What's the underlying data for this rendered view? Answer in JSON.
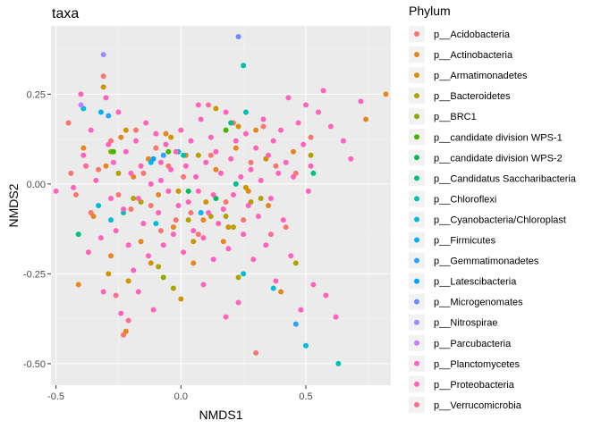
{
  "chart_data": {
    "type": "scatter",
    "title": "taxa",
    "xlabel": "NMDS1",
    "ylabel": "NMDS2",
    "xlim": [
      -0.52,
      0.84
    ],
    "ylim": [
      -0.56,
      0.44
    ],
    "x_ticks": [
      -0.5,
      0.0,
      0.5
    ],
    "x_tick_labels": [
      "-0.5",
      "0.0",
      "0.5"
    ],
    "y_ticks": [
      -0.5,
      -0.25,
      0.0,
      0.25
    ],
    "y_tick_labels": [
      "-0.50",
      "-0.25",
      "0.00",
      "0.25"
    ],
    "grid": true,
    "legend": {
      "title": "Phylum",
      "position": "right",
      "entries": [
        {
          "label": "p__Acidobacteria",
          "color": "#F8766D"
        },
        {
          "label": "p__Actinobacteria",
          "color": "#E7851E"
        },
        {
          "label": "p__Armatimonadetes",
          "color": "#D09400"
        },
        {
          "label": "p__Bacteroidetes",
          "color": "#B2A100"
        },
        {
          "label": "p__BRC1",
          "color": "#89AC00"
        },
        {
          "label": "p__candidate division WPS-1",
          "color": "#45B500"
        },
        {
          "label": "p__candidate division WPS-2",
          "color": "#00BC51"
        },
        {
          "label": "p__Candidatus Saccharibacteria",
          "color": "#00C087"
        },
        {
          "label": "p__Chloroflexi",
          "color": "#00C0B2"
        },
        {
          "label": "p__Cyanobacteria/Chloroplast",
          "color": "#00BCD6"
        },
        {
          "label": "p__Firmicutes",
          "color": "#00B3F2"
        },
        {
          "label": "p__Gemmatimonadetes",
          "color": "#29A3FF"
        },
        {
          "label": "p__Latescibacteria",
          "color": "#00A5FF"
        },
        {
          "label": "p__Microgenomates",
          "color": "#6B8BFF"
        },
        {
          "label": "p__Nitrospirae",
          "color": "#9C8DFF"
        },
        {
          "label": "p__Parcubacteria",
          "color": "#C77CFF"
        },
        {
          "label": "p__Planctomycetes",
          "color": "#FF61C9"
        },
        {
          "label": "p__Proteobacteria",
          "color": "#FF62BC"
        },
        {
          "label": "p__Verrucomicrobia",
          "color": "#FF6C91"
        }
      ]
    },
    "series": [
      {
        "name": "p__Acidobacteria",
        "points": [
          [
            -0.45,
            0.17
          ],
          [
            -0.44,
            0.03
          ],
          [
            -0.42,
            -0.03
          ],
          [
            -0.38,
            0.05
          ],
          [
            -0.36,
            -0.08
          ],
          [
            -0.33,
            0.04
          ],
          [
            -0.31,
            0.3
          ],
          [
            -0.28,
            0.12
          ],
          [
            -0.25,
            -0.03
          ],
          [
            -0.23,
            -0.42
          ],
          [
            -0.2,
            -0.07
          ],
          [
            -0.18,
            0.15
          ],
          [
            -0.15,
            0.03
          ],
          [
            -0.12,
            -0.06
          ],
          [
            -0.1,
            0.1
          ],
          [
            -0.08,
            -0.13
          ],
          [
            -0.05,
            0.05
          ],
          [
            -0.02,
            -0.1
          ],
          [
            0.01,
            0.02
          ],
          [
            0.04,
            -0.08
          ],
          [
            0.07,
            -0.14
          ],
          [
            0.12,
            0.08
          ],
          [
            0.18,
            -0.05
          ],
          [
            0.21,
            0.17
          ],
          [
            0.25,
            -0.1
          ],
          [
            0.28,
            0.06
          ],
          [
            0.3,
            -0.47
          ],
          [
            0.33,
            0.16
          ],
          [
            0.38,
            0.05
          ],
          [
            0.42,
            -0.12
          ],
          [
            0.46,
            0.03
          ],
          [
            0.52,
            0.13
          ]
        ]
      },
      {
        "name": "p__Actinobacteria",
        "points": [
          [
            -0.41,
            -0.28
          ],
          [
            -0.39,
            0.1
          ],
          [
            -0.35,
            -0.09
          ],
          [
            -0.3,
            0.05
          ],
          [
            -0.28,
            -0.2
          ],
          [
            -0.24,
            0.13
          ],
          [
            -0.22,
            -0.41
          ],
          [
            -0.19,
            0.02
          ],
          [
            -0.16,
            -0.16
          ],
          [
            -0.13,
            0.07
          ],
          [
            -0.09,
            -0.03
          ],
          [
            -0.06,
            0.14
          ],
          [
            -0.03,
            -0.12
          ],
          [
            0.02,
            0.08
          ],
          [
            0.05,
            -0.22
          ],
          [
            0.09,
            -0.1
          ],
          [
            0.14,
            0.04
          ],
          [
            0.17,
            -0.16
          ],
          [
            0.22,
            0.1
          ],
          [
            0.27,
            -0.02
          ],
          [
            0.3,
            0.15
          ],
          [
            0.35,
            -0.06
          ],
          [
            0.4,
            -0.3
          ],
          [
            0.45,
            0.09
          ],
          [
            0.74,
            0.18
          ],
          [
            0.82,
            0.25
          ]
        ]
      },
      {
        "name": "p__Armatimonadetes",
        "points": [
          [
            -0.31,
            0.27
          ],
          [
            -0.29,
            -0.25
          ],
          [
            -0.22,
            0.15
          ],
          [
            -0.21,
            -0.27
          ],
          [
            -0.12,
            -0.22
          ],
          [
            -0.04,
            0.13
          ],
          [
            -0.01,
            -0.02
          ],
          [
            0.0,
            -0.32
          ],
          [
            0.05,
            -0.16
          ],
          [
            0.1,
            -0.05
          ],
          [
            0.14,
            0.21
          ],
          [
            0.19,
            -0.12
          ],
          [
            0.23,
            0.16
          ],
          [
            0.26,
            -0.01
          ],
          [
            0.34,
            0.07
          ]
        ]
      },
      {
        "name": "p__Bacteroidetes",
        "points": [
          [
            -0.25,
            0.03
          ],
          [
            -0.19,
            -0.04
          ],
          [
            -0.16,
            -0.05
          ],
          [
            -0.09,
            -0.23
          ],
          [
            -0.03,
            -0.29
          ],
          [
            0.03,
            -0.1
          ],
          [
            0.07,
            0.08
          ],
          [
            0.12,
            -0.09
          ],
          [
            0.18,
            -0.09
          ],
          [
            0.21,
            -0.12
          ],
          [
            0.23,
            -0.26
          ],
          [
            0.28,
            -0.05
          ],
          [
            0.32,
            -0.04
          ],
          [
            0.46,
            -0.22
          ],
          [
            0.52,
            0.08
          ]
        ]
      },
      {
        "name": "p__BRC1",
        "points": [
          [
            -0.28,
            0.09
          ],
          [
            -0.07,
            -0.26
          ]
        ]
      },
      {
        "name": "p__candidate division WPS-1",
        "points": [
          [
            -0.27,
            0.09
          ],
          [
            -0.05,
            0.09
          ],
          [
            0.18,
            0.15
          ]
        ]
      },
      {
        "name": "p__candidate division WPS-2",
        "points": [
          [
            0.03,
            -0.02
          ],
          [
            0.14,
            -0.04
          ]
        ]
      },
      {
        "name": "p__Candidatus Saccharibacteria",
        "points": [
          [
            -0.41,
            -0.14
          ],
          [
            0.2,
            0.17
          ],
          [
            0.22,
            0.0
          ],
          [
            0.53,
            0.03
          ]
        ]
      },
      {
        "name": "p__Chloroflexi",
        "points": [
          [
            -0.23,
            -0.08
          ],
          [
            0.25,
            0.33
          ],
          [
            0.26,
            0.2
          ],
          [
            0.63,
            -0.5
          ],
          [
            0.01,
            0.08
          ]
        ]
      },
      {
        "name": "p__Cyanobacteria/Chloroplast",
        "points": [
          [
            -0.39,
            0.21
          ],
          [
            -0.33,
            -0.06
          ],
          [
            -0.28,
            -0.1
          ],
          [
            -0.1,
            -0.11
          ],
          [
            -0.01,
            0.09
          ],
          [
            0.25,
            -0.25
          ],
          [
            0.37,
            -0.29
          ],
          [
            0.5,
            -0.45
          ]
        ]
      },
      {
        "name": "p__Firmicutes",
        "points": [
          [
            -0.32,
            0.2
          ],
          [
            -0.12,
            0.06
          ],
          [
            0.08,
            -0.08
          ]
        ]
      },
      {
        "name": "p__Gemmatimonadetes",
        "points": [
          [
            -0.29,
            0.19
          ],
          [
            -0.07,
            0.08
          ],
          [
            0.46,
            -0.39
          ]
        ]
      },
      {
        "name": "p__Latescibacteria",
        "points": [
          [
            -0.11,
            0.07
          ]
        ]
      },
      {
        "name": "p__Microgenomates",
        "points": [
          [
            0.23,
            0.41
          ]
        ]
      },
      {
        "name": "p__Nitrospirae",
        "points": [
          [
            -0.31,
            0.36
          ]
        ]
      },
      {
        "name": "p__Parcubacteria",
        "points": [
          [
            -0.4,
            0.22
          ]
        ]
      },
      {
        "name": "p__Planctomycetes",
        "points": [
          [
            -0.08,
            0.01
          ],
          [
            0.13,
            -0.21
          ]
        ]
      },
      {
        "name": "p__Proteobacteria",
        "points": [
          [
            -0.5,
            -0.02
          ],
          [
            -0.43,
            -0.01
          ],
          [
            -0.4,
            0.25
          ],
          [
            -0.39,
            0.08
          ],
          [
            -0.37,
            -0.19
          ],
          [
            -0.36,
            0.15
          ],
          [
            -0.34,
            0.01
          ],
          [
            -0.32,
            -0.15
          ],
          [
            -0.31,
            -0.3
          ],
          [
            -0.3,
            0.24
          ],
          [
            -0.29,
            0.11
          ],
          [
            -0.28,
            -0.04
          ],
          [
            -0.27,
            0.06
          ],
          [
            -0.26,
            -0.13
          ],
          [
            -0.25,
            0.2
          ],
          [
            -0.24,
            -0.36
          ],
          [
            -0.23,
            -0.07
          ],
          [
            -0.22,
            0.09
          ],
          [
            -0.21,
            -0.17
          ],
          [
            -0.2,
            0.03
          ],
          [
            -0.19,
            -0.24
          ],
          [
            -0.18,
            0.12
          ],
          [
            -0.17,
            -0.04
          ],
          [
            -0.16,
            0.05
          ],
          [
            -0.15,
            -0.11
          ],
          [
            -0.14,
            0.17
          ],
          [
            -0.13,
            -0.2
          ],
          [
            -0.12,
            0.0
          ],
          [
            -0.11,
            -0.35
          ],
          [
            -0.1,
            0.14
          ],
          [
            -0.09,
            -0.08
          ],
          [
            -0.08,
            0.06
          ],
          [
            -0.07,
            -0.17
          ],
          [
            -0.06,
            0.11
          ],
          [
            -0.05,
            -0.02
          ],
          [
            -0.04,
            0.04
          ],
          [
            -0.03,
            -0.14
          ],
          [
            -0.02,
            0.09
          ],
          [
            -0.01,
            -0.06
          ],
          [
            0.0,
            0.15
          ],
          [
            0.01,
            -0.19
          ],
          [
            0.02,
            0.05
          ],
          [
            0.03,
            -0.05
          ],
          [
            0.04,
            0.12
          ],
          [
            0.05,
            -0.13
          ],
          [
            0.06,
            0.02
          ],
          [
            0.07,
            -0.02
          ],
          [
            0.08,
            0.18
          ],
          [
            0.09,
            -0.15
          ],
          [
            0.1,
            0.06
          ],
          [
            0.11,
            -0.08
          ],
          [
            0.12,
            0.13
          ],
          [
            0.13,
            -0.03
          ],
          [
            0.14,
            0.09
          ],
          [
            0.15,
            -0.11
          ],
          [
            0.16,
            0.03
          ],
          [
            0.17,
            -0.07
          ],
          [
            0.18,
            0.2
          ],
          [
            0.19,
            -0.18
          ],
          [
            0.2,
            0.07
          ],
          [
            0.21,
            -0.03
          ],
          [
            0.22,
            0.12
          ],
          [
            0.23,
            -0.33
          ],
          [
            0.24,
            0.02
          ],
          [
            0.25,
            -0.14
          ],
          [
            0.26,
            0.14
          ],
          [
            0.27,
            -0.06
          ],
          [
            0.28,
            0.04
          ],
          [
            0.29,
            -0.21
          ],
          [
            0.3,
            0.1
          ],
          [
            0.31,
            -0.09
          ],
          [
            0.32,
            0.01
          ],
          [
            0.33,
            0.18
          ],
          [
            0.34,
            -0.17
          ],
          [
            0.35,
            0.08
          ],
          [
            0.36,
            -0.04
          ],
          [
            0.37,
            0.12
          ],
          [
            0.38,
            -0.27
          ],
          [
            0.39,
            0.03
          ],
          [
            0.4,
            0.15
          ],
          [
            0.41,
            -0.1
          ],
          [
            0.42,
            0.06
          ],
          [
            0.43,
            0.24
          ],
          [
            0.44,
            -0.2
          ],
          [
            0.45,
            0.02
          ],
          [
            0.47,
            0.17
          ],
          [
            0.48,
            -0.35
          ],
          [
            0.49,
            0.11
          ],
          [
            0.5,
            0.22
          ],
          [
            0.51,
            -0.02
          ],
          [
            0.52,
            0.05
          ],
          [
            0.53,
            -0.28
          ],
          [
            0.55,
            0.2
          ],
          [
            0.57,
            0.26
          ],
          [
            0.58,
            -0.31
          ],
          [
            0.6,
            0.16
          ],
          [
            0.62,
            -0.37
          ],
          [
            0.65,
            0.12
          ],
          [
            0.68,
            0.07
          ],
          [
            0.72,
            0.23
          ],
          [
            -0.17,
            -0.3
          ],
          [
            0.09,
            -0.28
          ],
          [
            0.18,
            -0.37
          ],
          [
            0.07,
            0.22
          ]
        ]
      },
      {
        "name": "p__Verrucomicrobia",
        "points": [
          [
            -0.38,
            0.05
          ],
          [
            -0.26,
            -0.31
          ],
          [
            -0.21,
            -0.38
          ],
          [
            0.11,
            0.22
          ],
          [
            0.36,
            -0.14
          ]
        ]
      }
    ]
  }
}
